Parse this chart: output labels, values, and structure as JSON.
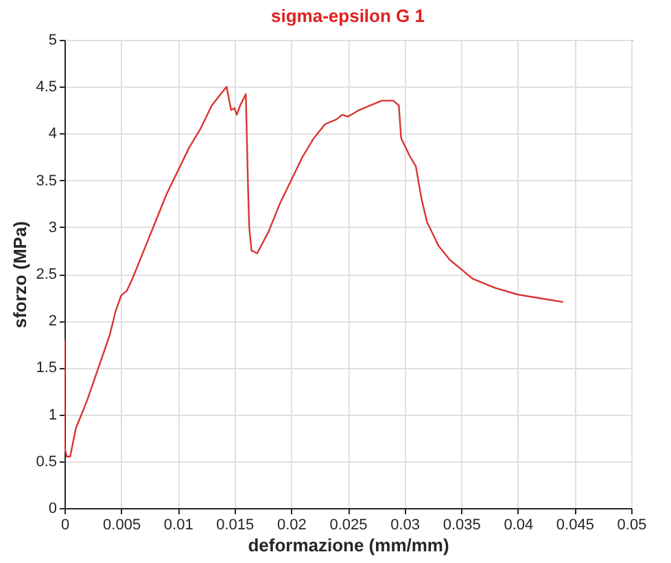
{
  "chart_data": {
    "type": "line",
    "title": "sigma-epsilon G 1",
    "xlabel": "deformazione (mm/mm)",
    "ylabel": "sforzo (MPa)",
    "xlim": [
      0,
      0.05
    ],
    "xticks": [
      0,
      0.005,
      0.01,
      0.015,
      0.02,
      0.025,
      0.03,
      0.035,
      0.04,
      0.045,
      0.05
    ],
    "ylim": [
      0,
      5
    ],
    "yticks": [
      0,
      0.5,
      1,
      1.5,
      2,
      2.5,
      3,
      3.5,
      4,
      4.5,
      5
    ],
    "grid": true,
    "series": [
      {
        "color": "#d9342f",
        "x": [
          0,
          0,
          0.0002,
          0.0005,
          0.001,
          0.002,
          0.003,
          0.004,
          0.0045,
          0.005,
          0.0055,
          0.006,
          0.007,
          0.008,
          0.009,
          0.01,
          0.011,
          0.012,
          0.013,
          0.0143,
          0.0147,
          0.015,
          0.0152,
          0.0155,
          0.016,
          0.0162,
          0.0163,
          0.0165,
          0.017,
          0.018,
          0.019,
          0.02,
          0.021,
          0.022,
          0.023,
          0.024,
          0.0245,
          0.025,
          0.026,
          0.027,
          0.028,
          0.029,
          0.0295,
          0.0297,
          0.0305,
          0.031,
          0.0315,
          0.032,
          0.033,
          0.034,
          0.035,
          0.036,
          0.038,
          0.04,
          0.042,
          0.044
        ],
        "values": [
          1.8,
          0.65,
          0.55,
          0.55,
          0.85,
          1.15,
          1.5,
          1.85,
          2.1,
          2.27,
          2.32,
          2.45,
          2.75,
          3.05,
          3.35,
          3.6,
          3.85,
          4.05,
          4.3,
          4.5,
          4.25,
          4.27,
          4.2,
          4.3,
          4.42,
          3.4,
          3.0,
          2.75,
          2.72,
          2.95,
          3.25,
          3.5,
          3.75,
          3.95,
          4.1,
          4.15,
          4.2,
          4.18,
          4.25,
          4.3,
          4.35,
          4.35,
          4.3,
          3.95,
          3.75,
          3.65,
          3.3,
          3.05,
          2.8,
          2.65,
          2.55,
          2.45,
          2.35,
          2.28,
          2.24,
          2.2
        ]
      }
    ]
  }
}
